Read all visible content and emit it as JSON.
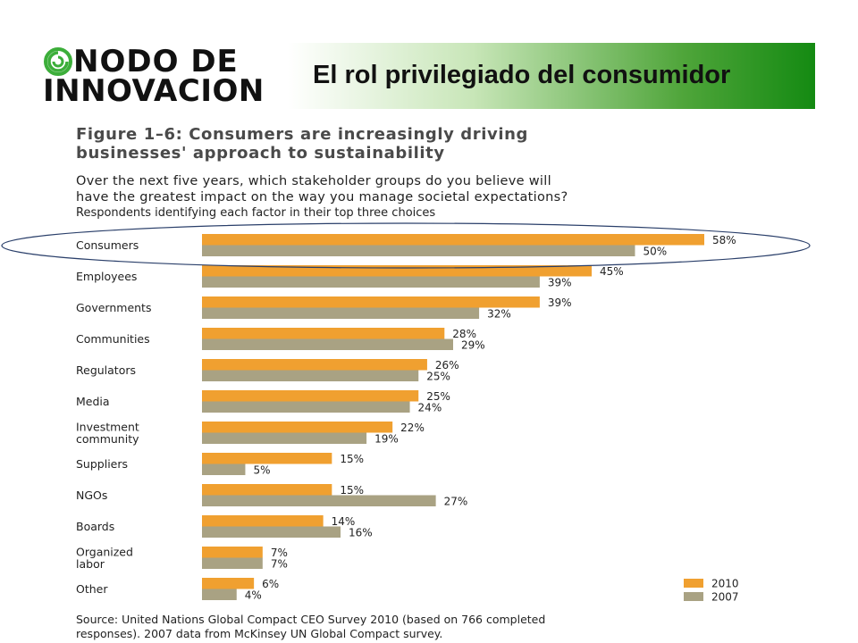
{
  "header": {
    "logo_line1": "NODO DE",
    "logo_line2": "INNOVACION",
    "banner_title": "El rol privilegiado del consumidor"
  },
  "figure": {
    "title_line1": "Figure 1–6: Consumers are increasingly driving",
    "title_line2": "businesses' approach to sustainability",
    "question_line1": "Over the next five years, which stakeholder groups do you believe will",
    "question_line2": "have the greatest  impact  on the way you manage societal  expectations?",
    "respondents_note": "Respondents identifying each factor in their top three choices",
    "source_line1": "Source: United Nations Global Compact CEO Survey 2010 (based on 766 completed",
    "source_line2": "responses). 2007 data from McKinsey UN Global Compact survey."
  },
  "colors": {
    "series_2010": "#f0a030",
    "series_2007": "#a9a283",
    "highlight_ellipse": "#2a3f6a"
  },
  "chart_data": {
    "type": "bar",
    "orientation": "horizontal",
    "categories": [
      [
        "Consumers"
      ],
      [
        "Employees"
      ],
      [
        "Governments"
      ],
      [
        "Communities"
      ],
      [
        "Regulators"
      ],
      [
        "Media"
      ],
      [
        "Investment",
        "community"
      ],
      [
        "Suppliers"
      ],
      [
        "NGOs"
      ],
      [
        "Boards"
      ],
      [
        "Organized",
        "labor"
      ],
      [
        "Other"
      ]
    ],
    "series": [
      {
        "name": "2010",
        "values": [
          58,
          45,
          39,
          28,
          26,
          25,
          22,
          15,
          15,
          14,
          7,
          6
        ]
      },
      {
        "name": "2007",
        "values": [
          50,
          39,
          32,
          29,
          25,
          24,
          19,
          5,
          27,
          16,
          7,
          4
        ]
      }
    ],
    "value_suffix": "%",
    "xlim": [
      0,
      58
    ],
    "legend_position": "bottom-right",
    "highlighted_category": "Consumers"
  }
}
